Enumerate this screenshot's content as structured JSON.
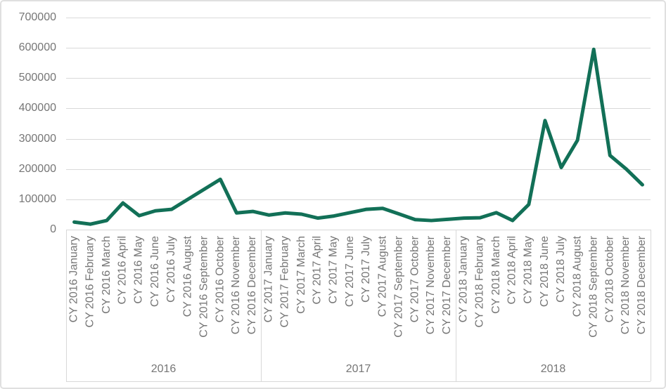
{
  "chart_data": {
    "type": "line",
    "title": "",
    "legend": "none",
    "grid": true,
    "ylim": [
      0,
      700000
    ],
    "y_ticks": [
      700000,
      600000,
      500000,
      400000,
      300000,
      200000,
      100000,
      0
    ],
    "year_groups": [
      "2016",
      "2017",
      "2018"
    ],
    "categories": [
      "CY 2016 January",
      "CY 2016 February",
      "CY 2016 March",
      "CY 2016 April",
      "CY 2016 May",
      "CY 2016 June",
      "CY 2016 July",
      "CY 2016 August",
      "CY 2016 September",
      "CY 2016 October",
      "CY 2016 November",
      "CY 2016 December",
      "CY 2017 January",
      "CY 2017 February",
      "CY 2017 March",
      "CY 2017 April",
      "CY 2017 May",
      "CY 2017 June",
      "CY 2017 July",
      "CY 2017 August",
      "CY 2017 September",
      "CY 2017 October",
      "CY 2017 November",
      "CY 2017 December",
      "CY 2018 January",
      "CY 2018 February",
      "CY 2018 March",
      "CY 2018 April",
      "CY 2018 May",
      "CY 2018 June",
      "CY 2018 July",
      "CY 2018 August",
      "CY 2018 September",
      "CY 2018 October",
      "CY 2018 November",
      "CY 2018 December"
    ],
    "values": [
      25000,
      18000,
      30000,
      88000,
      46000,
      62000,
      67000,
      100000,
      133000,
      166000,
      55000,
      60000,
      48000,
      55000,
      51000,
      38000,
      45000,
      56000,
      67000,
      70000,
      52000,
      33000,
      30000,
      34000,
      38000,
      39000,
      56000,
      30000,
      83000,
      360000,
      205000,
      295000,
      595000,
      245000,
      200000,
      148000
    ],
    "line_color": "#127057",
    "grid_color": "#d9d9d9",
    "label_color": "#767676",
    "border_color": "#e0e0e0"
  }
}
